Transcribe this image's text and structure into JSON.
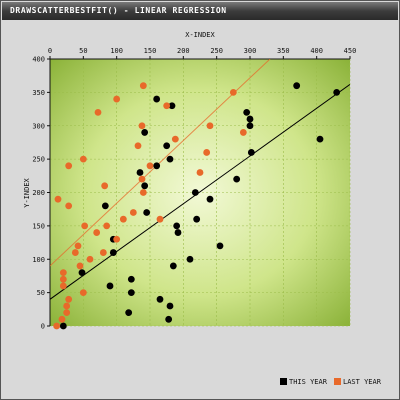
{
  "title": "DRAWSCATTERBESTFIT() - LINEAR REGRESSION",
  "colors": {
    "background_inner": "#f2f9d6",
    "background_outer": "#8cb33a",
    "series_1": "#000000",
    "series_2": "#e8692a",
    "grid": "#9bbd4a"
  },
  "chart_data": {
    "type": "scatter",
    "title": "DRAWSCATTERBESTFIT() - LINEAR REGRESSION",
    "xlabel": "X-INDEX",
    "ylabel": "Y-INDEX",
    "xlim": [
      0,
      450
    ],
    "ylim": [
      0,
      400
    ],
    "x_ticks": [
      0,
      50,
      100,
      150,
      200,
      250,
      300,
      350,
      400,
      450
    ],
    "y_ticks": [
      0,
      50,
      100,
      150,
      200,
      250,
      300,
      350,
      400
    ],
    "x_axis_position": "top",
    "grid": true,
    "legend_position": "bottom-right",
    "series": [
      {
        "name": "THIS YEAR",
        "color": "#000000",
        "points": [
          [
            20,
            0
          ],
          [
            48,
            80
          ],
          [
            90,
            60
          ],
          [
            95,
            130
          ],
          [
            95,
            110
          ],
          [
            83,
            180
          ],
          [
            122,
            70
          ],
          [
            122,
            50
          ],
          [
            118,
            20
          ],
          [
            135,
            230
          ],
          [
            142,
            210
          ],
          [
            142,
            290
          ],
          [
            145,
            170
          ],
          [
            160,
            340
          ],
          [
            160,
            240
          ],
          [
            180,
            250
          ],
          [
            183,
            330
          ],
          [
            185,
            90
          ],
          [
            190,
            150
          ],
          [
            192,
            140
          ],
          [
            210,
            100
          ],
          [
            218,
            200
          ],
          [
            220,
            160
          ],
          [
            240,
            190
          ],
          [
            255,
            120
          ],
          [
            280,
            220
          ],
          [
            295,
            320
          ],
          [
            300,
            310
          ],
          [
            300,
            300
          ],
          [
            302,
            260
          ],
          [
            370,
            360
          ],
          [
            405,
            280
          ],
          [
            430,
            350
          ],
          [
            165,
            40
          ],
          [
            180,
            30
          ],
          [
            178,
            10
          ],
          [
            175,
            270
          ]
        ],
        "fit": [
          [
            0,
            40
          ],
          [
            450,
            362
          ]
        ]
      },
      {
        "name": "LAST YEAR",
        "color": "#e8692a",
        "points": [
          [
            10,
            0
          ],
          [
            18,
            10
          ],
          [
            20,
            60
          ],
          [
            20,
            70
          ],
          [
            20,
            80
          ],
          [
            28,
            40
          ],
          [
            25,
            30
          ],
          [
            25,
            20
          ],
          [
            12,
            190
          ],
          [
            28,
            180
          ],
          [
            28,
            240
          ],
          [
            38,
            110
          ],
          [
            42,
            120
          ],
          [
            45,
            90
          ],
          [
            50,
            50
          ],
          [
            50,
            250
          ],
          [
            52,
            150
          ],
          [
            70,
            140
          ],
          [
            72,
            320
          ],
          [
            80,
            110
          ],
          [
            82,
            210
          ],
          [
            100,
            130
          ],
          [
            100,
            340
          ],
          [
            125,
            170
          ],
          [
            132,
            270
          ],
          [
            138,
            300
          ],
          [
            140,
            360
          ],
          [
            138,
            220
          ],
          [
            140,
            200
          ],
          [
            150,
            240
          ],
          [
            165,
            160
          ],
          [
            175,
            330
          ],
          [
            188,
            280
          ],
          [
            225,
            230
          ],
          [
            235,
            260
          ],
          [
            240,
            300
          ],
          [
            275,
            350
          ],
          [
            290,
            290
          ],
          [
            60,
            100
          ],
          [
            85,
            150
          ],
          [
            110,
            160
          ]
        ],
        "fit": [
          [
            0,
            90
          ],
          [
            330,
            400
          ]
        ]
      }
    ]
  },
  "legend": {
    "items": [
      {
        "label": "THIS YEAR",
        "color": "#000000"
      },
      {
        "label": "LAST YEAR",
        "color": "#e8692a"
      }
    ]
  }
}
